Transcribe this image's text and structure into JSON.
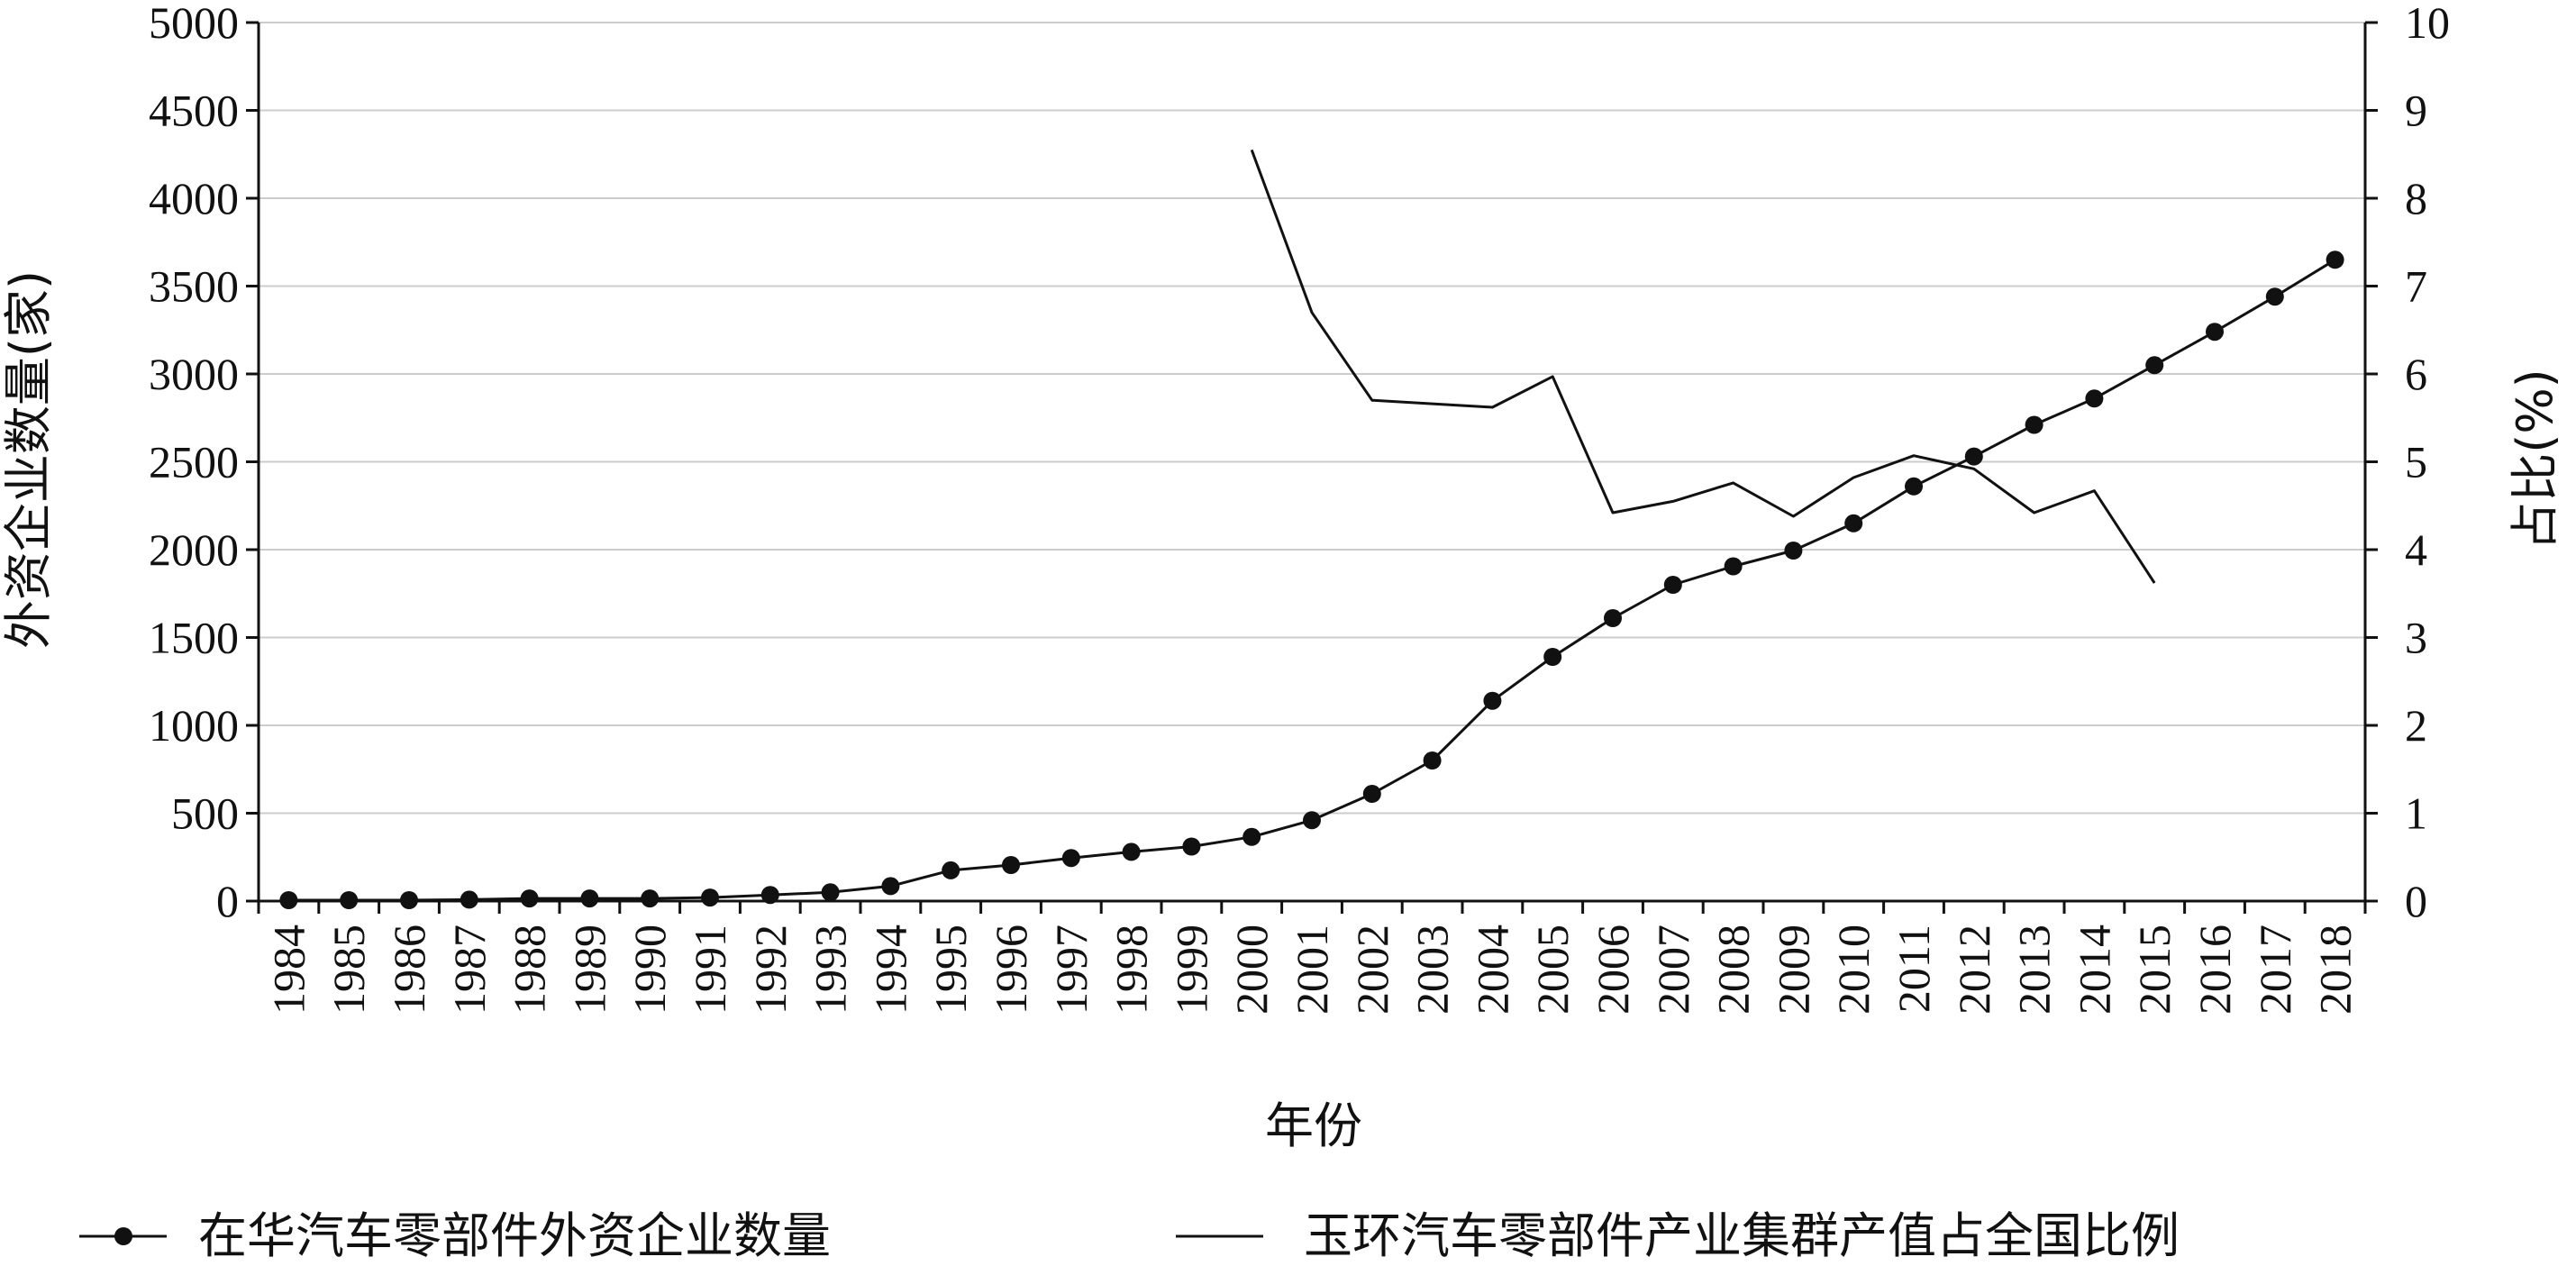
{
  "chart_data": {
    "type": "line",
    "title": "",
    "xlabel": "年份",
    "ylabel_left": "外资企业数量(家)",
    "ylabel_right": "占比(%)",
    "ylim_left": [
      0,
      5000
    ],
    "ylim_right": [
      0,
      10
    ],
    "yticks_left": [
      0,
      500,
      1000,
      1500,
      2000,
      2500,
      3000,
      3500,
      4000,
      4500,
      5000
    ],
    "yticks_right": [
      0,
      1,
      2,
      3,
      4,
      5,
      6,
      7,
      8,
      9,
      10
    ],
    "grid": true,
    "legend_position": "bottom",
    "x": [
      "1984",
      "1985",
      "1986",
      "1987",
      "1988",
      "1989",
      "1990",
      "1991",
      "1992",
      "1993",
      "1994",
      "1995",
      "1996",
      "1997",
      "1998",
      "1999",
      "2000",
      "2001",
      "2002",
      "2003",
      "2004",
      "2005",
      "2006",
      "2007",
      "2008",
      "2009",
      "2010",
      "2011",
      "2012",
      "2013",
      "2014",
      "2015",
      "2016",
      "2017",
      "2018"
    ],
    "series": [
      {
        "name": "在华汽车零部件外资企业数量",
        "axis": "left",
        "marker": "circle",
        "color": "#111111",
        "values": [
          5,
          5,
          5,
          8,
          15,
          15,
          15,
          20,
          35,
          50,
          85,
          175,
          205,
          245,
          280,
          310,
          365,
          460,
          610,
          800,
          1140,
          1390,
          1610,
          1800,
          1905,
          1995,
          2150,
          2360,
          2530,
          2710,
          2860,
          3050,
          3240,
          3440,
          3650
        ]
      },
      {
        "name": "玉环汽车零部件产业集群产值占全国比例",
        "axis": "right",
        "marker": "none",
        "color": "#111111",
        "values": [
          null,
          null,
          null,
          null,
          null,
          null,
          null,
          null,
          null,
          null,
          null,
          null,
          null,
          null,
          null,
          null,
          8.55,
          6.7,
          5.7,
          5.66,
          5.62,
          5.97,
          4.42,
          4.55,
          4.76,
          4.38,
          4.82,
          5.07,
          4.92,
          4.42,
          4.67,
          3.62,
          null,
          null,
          null
        ]
      }
    ]
  }
}
